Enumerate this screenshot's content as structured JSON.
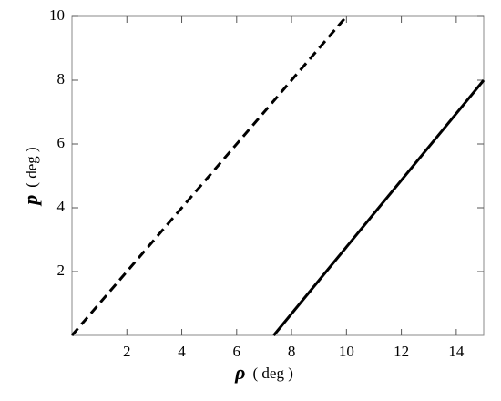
{
  "chart_data": {
    "type": "line",
    "xlabel_symbol": "ρ",
    "xlabel_unit": "( deg )",
    "ylabel_symbol": "p",
    "ylabel_unit": "( deg )",
    "xlim": [
      0,
      15
    ],
    "ylim": [
      0,
      10
    ],
    "xticks": [
      2,
      4,
      6,
      8,
      10,
      12,
      14
    ],
    "yticks": [
      2,
      4,
      6,
      8,
      10
    ],
    "series": [
      {
        "color": "#000000",
        "dash": "dashed",
        "x": [
          0,
          10
        ],
        "values": [
          0,
          10
        ]
      },
      {
        "color": "#000000",
        "dash": "solid",
        "x": [
          7.35,
          15
        ],
        "values": [
          0,
          8
        ]
      }
    ]
  }
}
